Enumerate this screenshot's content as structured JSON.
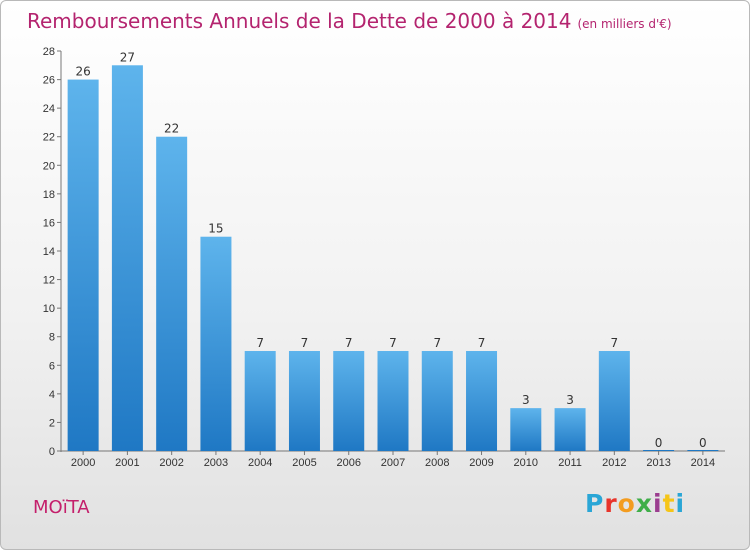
{
  "header": {
    "title": "Remboursements Annuels de la Dette de 2000 à 2014",
    "subtitle": "(en milliers d'€)"
  },
  "footer": {
    "commune": "MOïTA",
    "brand": "Proxiti",
    "brand_colors": [
      "#2aa6d6",
      "#e8342b",
      "#f39c1f",
      "#3fae49",
      "#9b3d8f",
      "#f5c518",
      "#2aa6d6"
    ]
  },
  "chart_data": {
    "type": "bar",
    "categories": [
      "2000",
      "2001",
      "2002",
      "2003",
      "2004",
      "2005",
      "2006",
      "2007",
      "2008",
      "2009",
      "2010",
      "2011",
      "2012",
      "2013",
      "2014"
    ],
    "values": [
      26,
      27,
      22,
      15,
      7,
      7,
      7,
      7,
      7,
      7,
      3,
      3,
      7,
      0,
      0
    ],
    "value_labels": [
      "26",
      "27",
      "22",
      "15",
      "7",
      "7",
      "7",
      "7",
      "7",
      "7",
      "3",
      "3",
      "7",
      "0",
      "0"
    ],
    "ylim": [
      0,
      28
    ],
    "yticks": [
      0,
      2,
      4,
      6,
      8,
      10,
      12,
      14,
      16,
      18,
      20,
      22,
      24,
      26,
      28
    ],
    "grid": false,
    "bar_color": "#3a9fe4"
  }
}
